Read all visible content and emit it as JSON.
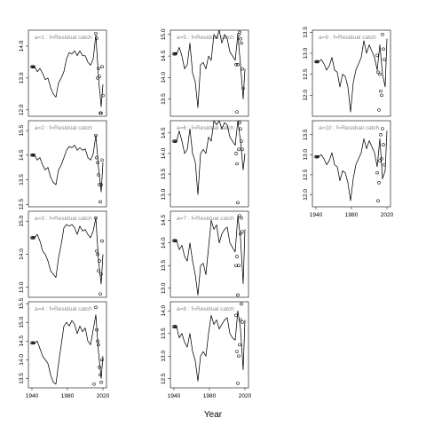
{
  "chart_data": {
    "type": "line",
    "xlabel": "Year",
    "x_ticks": [
      1940,
      1980,
      2020
    ],
    "panels": [
      {
        "title": "a=1  :  f=Residual catch",
        "xlim": [
          1936,
          2024
        ],
        "ylim": [
          11.8,
          14.5
        ],
        "y_ticks": [
          12.0,
          13.0,
          14.0
        ],
        "series": {
          "x": [
            1940,
            1943,
            1946,
            1949,
            1952,
            1955,
            1958,
            1961,
            1964,
            1967,
            1970,
            1973,
            1976,
            1979,
            1982,
            1985,
            1988,
            1991,
            1994,
            1997,
            2000,
            2003,
            2006,
            2009,
            2012,
            2015,
            2018,
            2020
          ],
          "y": [
            13.35,
            13.35,
            13.2,
            13.3,
            13.15,
            12.95,
            13.0,
            12.7,
            12.5,
            12.4,
            12.85,
            13.0,
            13.2,
            13.6,
            13.8,
            13.75,
            13.85,
            13.7,
            13.85,
            13.7,
            13.7,
            13.5,
            13.4,
            13.6,
            14.35,
            13.0,
            12.1,
            12.8
          ]
        },
        "points": {
          "x": [
            1940,
            1941,
            1942,
            2012,
            2013,
            2014,
            2015,
            2016,
            2017,
            2018,
            2019,
            2020
          ],
          "y": [
            13.35,
            13.35,
            13.35,
            14.4,
            14.25,
            13.0,
            13.3,
            13.05,
            11.9,
            11.9,
            13.35,
            12.45
          ]
        }
      },
      {
        "title": "a=2  :  f=Residual catch",
        "xlim": [
          1936,
          2024
        ],
        "ylim": [
          12.4,
          15.9
        ],
        "y_ticks": [
          12.5,
          13.5,
          14.5,
          15.5
        ],
        "series": {
          "x": [
            1940,
            1943,
            1946,
            1949,
            1952,
            1955,
            1958,
            1961,
            1964,
            1967,
            1970,
            1973,
            1976,
            1979,
            1982,
            1985,
            1988,
            1991,
            1994,
            1997,
            2000,
            2003,
            2006,
            2009,
            2012,
            2015,
            2018,
            2020
          ],
          "y": [
            14.5,
            14.5,
            14.3,
            14.4,
            14.1,
            13.9,
            14.0,
            13.6,
            13.4,
            13.3,
            13.9,
            14.1,
            14.4,
            14.7,
            14.85,
            14.8,
            14.9,
            14.7,
            14.8,
            14.7,
            14.75,
            14.4,
            14.3,
            14.55,
            15.3,
            14.0,
            13.0,
            14.2
          ]
        },
        "points": {
          "x": [
            1940,
            1941,
            1942,
            2012,
            2013,
            2014,
            2015,
            2016,
            2017,
            2018,
            2019
          ],
          "y": [
            14.5,
            14.5,
            14.5,
            15.3,
            14.4,
            14.2,
            13.7,
            13.3,
            12.6,
            13.3,
            14.3
          ]
        }
      },
      {
        "title": "a=3  :  f=Residual catch",
        "xlim": [
          1936,
          2024
        ],
        "ylim": [
          12.7,
          15.3
        ],
        "y_ticks": [
          13.0,
          14.0,
          15.0
        ],
        "series": {
          "x": [
            1940,
            1943,
            1946,
            1949,
            1952,
            1955,
            1958,
            1961,
            1964,
            1967,
            1970,
            1973,
            1976,
            1979,
            1982,
            1985,
            1988,
            1991,
            1994,
            1997,
            2000,
            2003,
            2006,
            2009,
            2012,
            2015,
            2018,
            2020
          ],
          "y": [
            14.5,
            14.5,
            14.6,
            14.4,
            14.1,
            14.0,
            13.8,
            13.5,
            13.4,
            13.3,
            13.9,
            14.3,
            14.8,
            14.9,
            14.85,
            14.9,
            14.8,
            14.6,
            14.85,
            14.7,
            14.75,
            14.6,
            14.5,
            14.7,
            15.1,
            13.8,
            13.1,
            14.0
          ]
        },
        "points": {
          "x": [
            1940,
            1941,
            1942,
            2012,
            2013,
            2014,
            2015,
            2016,
            2017,
            2018,
            2019
          ],
          "y": [
            14.5,
            14.5,
            14.5,
            15.1,
            14.1,
            14.0,
            13.5,
            13.8,
            12.8,
            13.4,
            14.4
          ]
        }
      },
      {
        "title": "a=4  :  f=Residual catch",
        "xlim": [
          1936,
          2024
        ],
        "ylim": [
          13.25,
          15.55
        ],
        "y_ticks": [
          13.5,
          14.0,
          14.5,
          15.0,
          15.5
        ],
        "series": {
          "x": [
            1940,
            1943,
            1946,
            1949,
            1952,
            1955,
            1958,
            1961,
            1964,
            1967,
            1970,
            1973,
            1976,
            1979,
            1982,
            1985,
            1988,
            1991,
            1994,
            1997,
            2000,
            2003,
            2006,
            2009,
            2012,
            2015,
            2018,
            2020
          ],
          "y": [
            14.45,
            14.45,
            14.5,
            14.3,
            14.1,
            14.0,
            13.9,
            13.6,
            13.4,
            13.35,
            13.9,
            14.4,
            14.9,
            15.0,
            14.9,
            15.05,
            14.95,
            14.7,
            14.9,
            14.75,
            14.85,
            14.5,
            14.4,
            14.8,
            15.2,
            14.2,
            13.5,
            14.1
          ]
        },
        "points": {
          "x": [
            1940,
            1941,
            1942,
            2010,
            2012,
            2013,
            2014,
            2015,
            2016,
            2017,
            2018,
            2019
          ],
          "y": [
            14.45,
            14.45,
            14.45,
            13.35,
            15.4,
            14.8,
            14.5,
            14.4,
            13.8,
            13.6,
            13.4,
            14.0
          ]
        }
      },
      {
        "title": "a=5  :  f=Residual catch",
        "xlim": [
          1936,
          2024
        ],
        "ylim": [
          13.1,
          15.1
        ],
        "y_ticks": [
          13.5,
          14.0,
          14.5,
          15.0
        ],
        "series": {
          "x": [
            1940,
            1943,
            1946,
            1949,
            1952,
            1955,
            1958,
            1961,
            1964,
            1967,
            1970,
            1973,
            1976,
            1979,
            1982,
            1985,
            1988,
            1991,
            1994,
            1997,
            2000,
            2003,
            2006,
            2009,
            2012,
            2015,
            2018,
            2020
          ],
          "y": [
            14.55,
            14.55,
            14.7,
            14.5,
            14.2,
            14.3,
            14.8,
            14.1,
            13.9,
            13.3,
            14.3,
            14.35,
            14.2,
            14.5,
            14.4,
            15.0,
            14.9,
            15.1,
            14.8,
            15.0,
            14.9,
            14.6,
            14.5,
            14.4,
            15.0,
            14.3,
            13.5,
            14.2
          ]
        },
        "points": {
          "x": [
            1940,
            1941,
            1942,
            2010,
            2011,
            2012,
            2013,
            2014,
            2015,
            2016,
            2017,
            2018
          ],
          "y": [
            14.55,
            14.55,
            14.55,
            14.3,
            13.2,
            14.3,
            15.0,
            15.05,
            14.9,
            14.8,
            14.2,
            13.75
          ]
        }
      },
      {
        "title": "a=6  :  f=Residual catch",
        "xlim": [
          1936,
          2024
        ],
        "ylim": [
          12.7,
          14.8
        ],
        "y_ticks": [
          13.0,
          13.5,
          14.0,
          14.5
        ],
        "series": {
          "x": [
            1940,
            1943,
            1946,
            1949,
            1952,
            1955,
            1958,
            1961,
            1964,
            1967,
            1970,
            1973,
            1976,
            1979,
            1982,
            1985,
            1988,
            1991,
            1994,
            1997,
            2000,
            2003,
            2006,
            2009,
            2012,
            2015,
            2018,
            2020
          ],
          "y": [
            14.3,
            14.3,
            14.55,
            14.3,
            14.0,
            14.1,
            14.6,
            14.0,
            13.8,
            13.0,
            14.0,
            14.1,
            14.0,
            14.4,
            14.3,
            14.8,
            14.7,
            14.8,
            14.6,
            14.75,
            14.7,
            14.4,
            14.3,
            14.2,
            14.8,
            14.3,
            13.6,
            14.0
          ]
        },
        "points": {
          "x": [
            1940,
            1941,
            1942,
            2010,
            2011,
            2012,
            2013,
            2014,
            2015,
            2016,
            2017
          ],
          "y": [
            14.3,
            14.3,
            14.3,
            14.0,
            13.75,
            12.8,
            14.1,
            14.75,
            14.6,
            14.3,
            14.1
          ]
        }
      },
      {
        "title": "a=7  :  f=Residual catch",
        "xlim": [
          1936,
          2024
        ],
        "ylim": [
          12.8,
          14.7
        ],
        "y_ticks": [
          13.0,
          13.5,
          14.0,
          14.5
        ],
        "series": {
          "x": [
            1940,
            1943,
            1946,
            1949,
            1952,
            1955,
            1958,
            1961,
            1964,
            1967,
            1970,
            1973,
            1976,
            1979,
            1982,
            1985,
            1988,
            1991,
            1994,
            1997,
            2000,
            2003,
            2006,
            2009,
            2012,
            2015,
            2018,
            2020
          ],
          "y": [
            14.05,
            14.05,
            13.85,
            13.95,
            13.7,
            13.6,
            14.0,
            13.6,
            13.3,
            12.85,
            13.5,
            13.55,
            13.3,
            13.9,
            14.5,
            14.3,
            14.4,
            14.0,
            14.2,
            14.3,
            14.35,
            14.0,
            13.9,
            13.8,
            14.6,
            14.1,
            13.1,
            14.3
          ]
        },
        "points": {
          "x": [
            1940,
            1941,
            1942,
            2010,
            2011,
            2012,
            2013,
            2014,
            2015,
            2016,
            2017
          ],
          "y": [
            14.05,
            14.05,
            14.05,
            13.5,
            13.7,
            12.85,
            13.5,
            14.6,
            14.2,
            14.55,
            14.25
          ]
        }
      },
      {
        "title": "a=8  :  f=Residual catch",
        "xlim": [
          1936,
          2024
        ],
        "ylim": [
          12.3,
          14.2
        ],
        "y_ticks": [
          12.5,
          13.0,
          13.5,
          14.0
        ],
        "series": {
          "x": [
            1940,
            1943,
            1946,
            1949,
            1952,
            1955,
            1958,
            1961,
            1964,
            1967,
            1970,
            1973,
            1976,
            1979,
            1982,
            1985,
            1988,
            1991,
            1994,
            1997,
            2000,
            2003,
            2006,
            2009,
            2012,
            2015,
            2018,
            2020
          ],
          "y": [
            13.65,
            13.65,
            13.4,
            13.5,
            13.3,
            13.2,
            13.5,
            13.1,
            12.9,
            12.45,
            13.0,
            13.1,
            13.0,
            13.5,
            13.9,
            13.7,
            13.8,
            13.6,
            13.7,
            13.8,
            13.85,
            13.5,
            13.4,
            13.35,
            14.0,
            13.6,
            12.7,
            13.8
          ]
        },
        "points": {
          "x": [
            1940,
            1941,
            1942,
            2010,
            2011,
            2012,
            2013,
            2014,
            2015,
            2016,
            2017
          ],
          "y": [
            13.65,
            13.65,
            13.65,
            13.9,
            13.1,
            12.4,
            13.0,
            13.25,
            13.8,
            14.15,
            13.75
          ]
        }
      },
      {
        "title": "a=9  :  f=Residual catch",
        "xlim": [
          1936,
          2024
        ],
        "ylim": [
          11.5,
          13.55
        ],
        "y_ticks": [
          12.0,
          12.5,
          13.0,
          13.5
        ],
        "series": {
          "x": [
            1940,
            1943,
            1946,
            1949,
            1952,
            1955,
            1958,
            1961,
            1964,
            1967,
            1970,
            1973,
            1976,
            1979,
            1982,
            1985,
            1988,
            1991,
            1994,
            1997,
            2000,
            2003,
            2006,
            2009,
            2012,
            2015,
            2018,
            2020
          ],
          "y": [
            12.8,
            12.8,
            12.85,
            12.75,
            12.6,
            12.7,
            12.9,
            12.6,
            12.55,
            12.2,
            12.5,
            12.45,
            12.2,
            11.6,
            12.3,
            12.6,
            12.75,
            12.9,
            13.3,
            13.0,
            13.2,
            13.05,
            12.9,
            12.6,
            13.2,
            12.5,
            12.2,
            13.35
          ]
        },
        "points": {
          "x": [
            1940,
            1941,
            1942,
            2009,
            2010,
            2011,
            2012,
            2013,
            2014,
            2015,
            2016,
            2017
          ],
          "y": [
            12.8,
            12.8,
            12.8,
            12.95,
            12.55,
            11.65,
            12.5,
            12.1,
            12.0,
            13.45,
            13.1,
            12.85
          ]
        }
      },
      {
        "title": "a=10  :  f=Residual catch",
        "xlim": [
          1936,
          2024
        ],
        "ylim": [
          11.7,
          13.85
        ],
        "y_ticks": [
          12.0,
          12.5,
          13.0,
          13.5
        ],
        "series": {
          "x": [
            1940,
            1943,
            1946,
            1949,
            1952,
            1955,
            1958,
            1961,
            1964,
            1967,
            1970,
            1973,
            1976,
            1979,
            1982,
            1985,
            1988,
            1991,
            1994,
            1997,
            2000,
            2003,
            2006,
            2009,
            2012,
            2015,
            2018,
            2020
          ],
          "y": [
            12.95,
            12.95,
            13.0,
            12.9,
            12.75,
            12.85,
            13.05,
            12.75,
            12.7,
            12.35,
            12.6,
            12.55,
            12.3,
            11.85,
            12.4,
            12.75,
            12.9,
            13.05,
            13.4,
            13.15,
            13.35,
            13.2,
            13.05,
            12.7,
            13.4,
            12.4,
            12.6,
            13.6
          ]
        },
        "points": {
          "x": [
            1940,
            1941,
            1942,
            2009,
            2010,
            2011,
            2012,
            2013,
            2014,
            2015,
            2016,
            2017
          ],
          "y": [
            12.95,
            12.95,
            12.95,
            12.55,
            11.85,
            12.3,
            12.85,
            13.5,
            12.9,
            13.65,
            13.25,
            12.75
          ]
        }
      }
    ]
  }
}
